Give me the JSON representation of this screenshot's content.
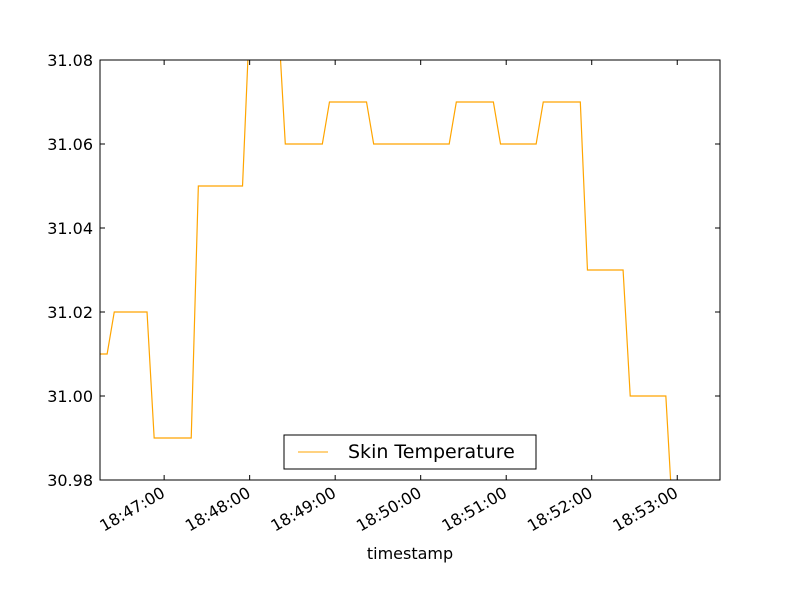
{
  "chart_data": {
    "type": "line",
    "xlabel": "timestamp",
    "ylabel": "",
    "title": "",
    "x_range": [
      "18:46:15",
      "18:53:30"
    ],
    "ylim": [
      30.98,
      31.08
    ],
    "y_ticks": [
      "30.98",
      "31.00",
      "31.02",
      "31.04",
      "31.06",
      "31.08"
    ],
    "x_ticks": [
      "18:47:00",
      "18:48:00",
      "18:49:00",
      "18:50:00",
      "18:51:00",
      "18:52:00",
      "18:53:00"
    ],
    "legend": {
      "position": "lower center",
      "entries": [
        "Skin Temperature"
      ]
    },
    "grid": false,
    "series": [
      {
        "name": "Skin Temperature",
        "color": "#FFA500",
        "points": [
          [
            "18:46:15",
            31.01
          ],
          [
            "18:46:20",
            31.01
          ],
          [
            "18:46:25",
            31.02
          ],
          [
            "18:46:48",
            31.02
          ],
          [
            "18:46:53",
            30.99
          ],
          [
            "18:47:19",
            30.99
          ],
          [
            "18:47:24",
            31.05
          ],
          [
            "18:47:55",
            31.05
          ],
          [
            "18:48:00",
            31.09
          ],
          [
            "18:48:20",
            31.09
          ],
          [
            "18:48:25",
            31.06
          ],
          [
            "18:48:51",
            31.06
          ],
          [
            "18:48:56",
            31.07
          ],
          [
            "18:49:22",
            31.07
          ],
          [
            "18:49:27",
            31.06
          ],
          [
            "18:50:20",
            31.06
          ],
          [
            "18:50:25",
            31.07
          ],
          [
            "18:50:51",
            31.07
          ],
          [
            "18:50:56",
            31.06
          ],
          [
            "18:51:21",
            31.06
          ],
          [
            "18:51:26",
            31.07
          ],
          [
            "18:51:52",
            31.07
          ],
          [
            "18:51:57",
            31.03
          ],
          [
            "18:52:22",
            31.03
          ],
          [
            "18:52:27",
            31.0
          ],
          [
            "18:52:52",
            31.0
          ],
          [
            "18:52:57",
            30.97
          ],
          [
            "18:53:30",
            30.97
          ]
        ]
      }
    ]
  }
}
